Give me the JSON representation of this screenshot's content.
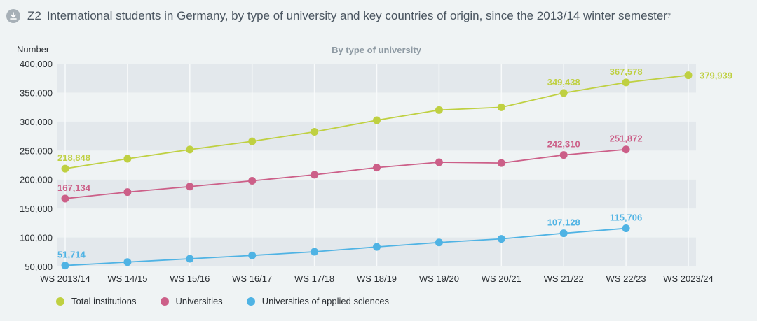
{
  "header": {
    "icon": "download-icon",
    "figure_number": "Z2",
    "title": "International students in Germany, by type of university and key countries of origin, since the 2013/14 winter semester",
    "footnote": "7"
  },
  "colors": {
    "total": "#bfd041",
    "universities": "#cc5f88",
    "uas": "#4fb3e4",
    "band_dark": "#e3e8ec",
    "band_light": "#eff3f4",
    "gridline": "#f8fafb"
  },
  "chart_data": {
    "type": "line",
    "title": "By type of university",
    "ylabel": "Number",
    "xlabel": "",
    "ylim": [
      50000,
      400000
    ],
    "yticks": [
      50000,
      100000,
      150000,
      200000,
      250000,
      300000,
      350000,
      400000
    ],
    "ytick_labels": [
      "50,000",
      "100,000",
      "150,000",
      "200,000",
      "250,000",
      "300,000",
      "350,000",
      "400,000"
    ],
    "categories": [
      "WS 2013/14",
      "WS 14/15",
      "WS 15/16",
      "WS 16/17",
      "WS 17/18",
      "WS 18/19",
      "WS 19/20",
      "WS 20/21",
      "WS 21/22",
      "WS 22/23",
      "WS 2023/24"
    ],
    "grid": "vertical lines + alternating horizontal bands",
    "legend_position": "bottom-left",
    "series": [
      {
        "key": "total",
        "name": "Total institutions",
        "values": [
          218848,
          235900,
          251700,
          265900,
          282300,
          302200,
          319900,
          324700,
          349438,
          367578,
          379939
        ],
        "labels": [
          {
            "index": 0,
            "text": "218,848"
          },
          {
            "index": 8,
            "text": "349,438"
          },
          {
            "index": 9,
            "text": "367,578"
          },
          {
            "index": 10,
            "text": "379,939"
          }
        ]
      },
      {
        "key": "universities",
        "name": "Universities",
        "values": [
          167134,
          178400,
          187900,
          197800,
          208300,
          220600,
          229800,
          228500,
          242310,
          251872,
          null
        ],
        "labels": [
          {
            "index": 0,
            "text": "167,134"
          },
          {
            "index": 8,
            "text": "242,310"
          },
          {
            "index": 9,
            "text": "251,872"
          }
        ]
      },
      {
        "key": "uas",
        "name": "Universities of applied sciences",
        "values": [
          51714,
          57500,
          63300,
          69000,
          75300,
          83600,
          91300,
          97500,
          107128,
          115706,
          null
        ],
        "labels": [
          {
            "index": 0,
            "text": "51,714"
          },
          {
            "index": 8,
            "text": "107,128"
          },
          {
            "index": 9,
            "text": "115,706"
          }
        ]
      }
    ]
  }
}
